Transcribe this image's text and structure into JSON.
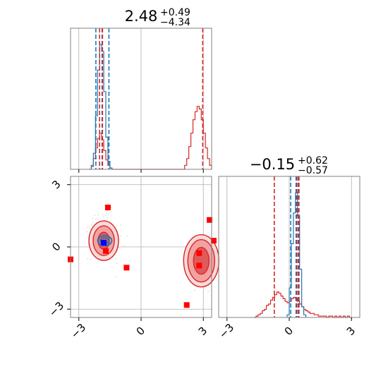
{
  "chart_data": {
    "type": "corner",
    "colors": {
      "red": "#d62728",
      "blue": "#1f77b4",
      "marker_red": "#ff0000",
      "marker_blue": "#0000ff",
      "grid": "#b0b0b0"
    },
    "tick_values": [
      -3,
      0,
      3
    ],
    "tick_labels": [
      "−3",
      "0",
      "3"
    ],
    "axis_range": [
      -3.4,
      3.4
    ],
    "grid": true,
    "panels": {
      "top": {
        "title": {
          "main": "2.48",
          "sup": "+0.49",
          "sub": "−4.34"
        },
        "red_bins": [
          [
            -2.45,
            0.0
          ],
          [
            -2.35,
            0.03
          ],
          [
            -2.25,
            0.08
          ],
          [
            -2.15,
            0.16
          ],
          [
            -2.05,
            0.23
          ],
          [
            -1.95,
            0.27
          ],
          [
            -1.85,
            0.22
          ],
          [
            -1.75,
            0.14
          ],
          [
            -1.65,
            0.07
          ],
          [
            -1.55,
            0.03
          ],
          [
            -1.45,
            0.01
          ],
          [
            -1.35,
            0.0
          ],
          [
            2.05,
            0.0
          ],
          [
            2.15,
            0.03
          ],
          [
            2.25,
            0.08
          ],
          [
            2.35,
            0.17
          ],
          [
            2.45,
            0.27
          ],
          [
            2.55,
            0.37
          ],
          [
            2.65,
            0.43
          ],
          [
            2.75,
            0.47
          ],
          [
            2.85,
            0.45
          ],
          [
            2.95,
            0.37
          ],
          [
            3.05,
            0.27
          ],
          [
            3.15,
            0.16
          ],
          [
            3.25,
            0.08
          ],
          [
            3.35,
            0.03
          ]
        ],
        "blue_bins": [
          [
            -2.35,
            0.02
          ],
          [
            -2.25,
            0.12
          ],
          [
            -2.15,
            0.4
          ],
          [
            -2.05,
            0.74
          ],
          [
            -1.95,
            0.93
          ],
          [
            -1.85,
            0.88
          ],
          [
            -1.75,
            0.58
          ],
          [
            -1.65,
            0.24
          ],
          [
            -1.55,
            0.06
          ],
          [
            -1.45,
            0.01
          ]
        ],
        "red_lines": [
          -2.0,
          -1.86,
          2.97
        ],
        "blue_lines": [
          -2.18,
          -1.88,
          -1.55
        ]
      },
      "joint": {
        "red_markers": [
          [
            -1.6,
            1.9
          ],
          [
            -1.7,
            -0.2
          ],
          [
            -0.7,
            -1.0
          ],
          [
            2.2,
            -2.8
          ],
          [
            3.3,
            1.3
          ],
          [
            3.5,
            0.3
          ],
          [
            2.8,
            -0.3
          ],
          [
            2.8,
            -0.9
          ],
          [
            -3.4,
            -0.6
          ]
        ],
        "blue_marker": [
          -1.8,
          0.2
        ],
        "red_modes": [
          {
            "cx": -1.8,
            "cy": 0.3
          },
          {
            "cx": 2.9,
            "cy": -0.6
          }
        ],
        "blue_mode": {
          "cx": -1.75,
          "cy": 0.3
        }
      },
      "right": {
        "title": {
          "main": "−0.15",
          "sup": "+0.62",
          "sub": "−0.57"
        },
        "red_bins": [
          [
            -1.65,
            0.0
          ],
          [
            -1.55,
            0.01
          ],
          [
            -1.45,
            0.02
          ],
          [
            -1.35,
            0.03
          ],
          [
            -1.25,
            0.05
          ],
          [
            -1.15,
            0.06
          ],
          [
            -1.05,
            0.09
          ],
          [
            -0.95,
            0.1
          ],
          [
            -0.85,
            0.13
          ],
          [
            -0.75,
            0.15
          ],
          [
            -0.65,
            0.17
          ],
          [
            -0.55,
            0.19
          ],
          [
            -0.45,
            0.18
          ],
          [
            -0.35,
            0.16
          ],
          [
            -0.25,
            0.14
          ],
          [
            -0.15,
            0.12
          ],
          [
            -0.05,
            0.11
          ],
          [
            0.05,
            0.12
          ],
          [
            0.15,
            0.14
          ],
          [
            0.25,
            0.15
          ],
          [
            0.35,
            0.14
          ],
          [
            0.45,
            0.12
          ],
          [
            0.55,
            0.1
          ],
          [
            0.65,
            0.08
          ],
          [
            0.75,
            0.06
          ],
          [
            0.85,
            0.05
          ],
          [
            0.95,
            0.04
          ],
          [
            1.05,
            0.03
          ],
          [
            1.15,
            0.03
          ],
          [
            1.25,
            0.02
          ],
          [
            1.35,
            0.02
          ],
          [
            1.45,
            0.01
          ],
          [
            1.55,
            0.01
          ],
          [
            1.65,
            0.01
          ],
          [
            1.75,
            0.01
          ],
          [
            1.85,
            0.0
          ],
          [
            1.95,
            0.01
          ],
          [
            2.05,
            0.01
          ],
          [
            2.15,
            0.0
          ],
          [
            2.25,
            0.01
          ],
          [
            2.35,
            0.0
          ],
          [
            2.45,
            0.01
          ],
          [
            2.55,
            0.0
          ],
          [
            2.65,
            0.01
          ],
          [
            2.75,
            0.0
          ],
          [
            2.85,
            0.01
          ],
          [
            2.95,
            0.0
          ]
        ],
        "blue_bins": [
          [
            -0.05,
            0.02
          ],
          [
            0.05,
            0.22
          ],
          [
            0.15,
            0.55
          ],
          [
            0.25,
            0.78
          ],
          [
            0.35,
            0.93
          ],
          [
            0.45,
            0.76
          ],
          [
            0.55,
            0.36
          ],
          [
            0.65,
            0.08
          ],
          [
            0.75,
            0.02
          ]
        ],
        "red_lines": [
          -0.72,
          0.36,
          0.47
        ],
        "blue_lines": [
          0.07,
          0.33,
          0.43
        ]
      }
    }
  }
}
